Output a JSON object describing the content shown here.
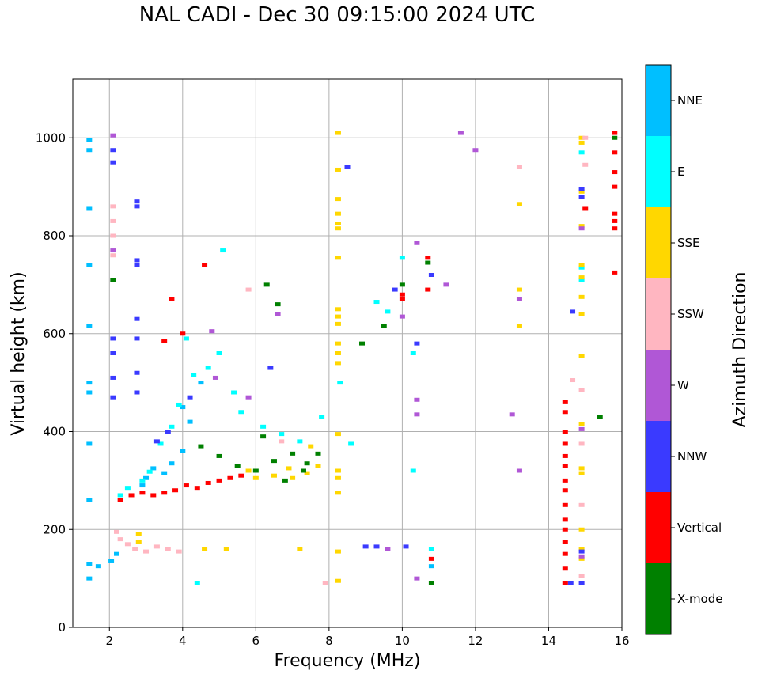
{
  "chart_data": {
    "type": "scatter",
    "title": "NAL CADI - Dec 30 09:15:00 2024 UTC",
    "xlabel": "Frequency (MHz)",
    "ylabel": "Virtual height (km)",
    "xlim": [
      1,
      16
    ],
    "ylim": [
      0,
      1120
    ],
    "xticks": [
      2,
      4,
      6,
      8,
      10,
      12,
      14,
      16
    ],
    "yticks": [
      0,
      200,
      400,
      600,
      800,
      1000
    ],
    "grid": true,
    "colorbar": {
      "label": "Azimuth Direction",
      "categories": [
        "X-mode",
        "Vertical",
        "NNW",
        "W",
        "SSW",
        "SSE",
        "E",
        "NNE"
      ],
      "colors": [
        "#008000",
        "#ff0000",
        "#3a3aff",
        "#b057d6",
        "#ffb6c1",
        "#ffd700",
        "#00ffff",
        "#00bfff"
      ]
    },
    "series": [
      {
        "name": "NNE",
        "points": [
          [
            1.45,
            975
          ],
          [
            1.45,
            995
          ],
          [
            1.45,
            855
          ],
          [
            1.45,
            740
          ],
          [
            1.45,
            615
          ],
          [
            1.45,
            480
          ],
          [
            1.45,
            500
          ],
          [
            1.45,
            375
          ],
          [
            1.45,
            260
          ],
          [
            1.45,
            130
          ],
          [
            1.45,
            100
          ],
          [
            1.7,
            125
          ],
          [
            2.05,
            135
          ],
          [
            2.2,
            150
          ],
          [
            3.0,
            305
          ],
          [
            3.5,
            315
          ],
          [
            3.7,
            335
          ],
          [
            4.0,
            360
          ],
          [
            4.0,
            450
          ],
          [
            4.2,
            420
          ],
          [
            4.5,
            500
          ],
          [
            2.9,
            290
          ],
          [
            3.2,
            325
          ],
          [
            10.8,
            125
          ]
        ]
      },
      {
        "name": "E",
        "points": [
          [
            2.3,
            270
          ],
          [
            2.5,
            285
          ],
          [
            2.9,
            300
          ],
          [
            3.1,
            318
          ],
          [
            3.4,
            375
          ],
          [
            3.7,
            410
          ],
          [
            3.9,
            455
          ],
          [
            4.1,
            590
          ],
          [
            4.3,
            515
          ],
          [
            4.7,
            530
          ],
          [
            5.0,
            560
          ],
          [
            5.4,
            480
          ],
          [
            5.6,
            440
          ],
          [
            6.2,
            410
          ],
          [
            6.7,
            395
          ],
          [
            7.2,
            380
          ],
          [
            7.8,
            430
          ],
          [
            8.3,
            500
          ],
          [
            8.6,
            375
          ],
          [
            9.3,
            665
          ],
          [
            9.6,
            645
          ],
          [
            10.0,
            755
          ],
          [
            10.3,
            320
          ],
          [
            10.3,
            560
          ],
          [
            14.9,
            970
          ],
          [
            14.9,
            735
          ],
          [
            14.9,
            710
          ],
          [
            4.4,
            90
          ],
          [
            5.1,
            770
          ],
          [
            10.8,
            160
          ]
        ]
      },
      {
        "name": "SSE",
        "points": [
          [
            8.25,
            1010
          ],
          [
            8.25,
            935
          ],
          [
            8.25,
            875
          ],
          [
            8.25,
            845
          ],
          [
            8.25,
            825
          ],
          [
            8.25,
            815
          ],
          [
            8.25,
            755
          ],
          [
            8.25,
            650
          ],
          [
            8.25,
            635
          ],
          [
            8.25,
            620
          ],
          [
            8.25,
            580
          ],
          [
            8.25,
            560
          ],
          [
            8.25,
            540
          ],
          [
            8.25,
            395
          ],
          [
            8.25,
            320
          ],
          [
            8.25,
            305
          ],
          [
            8.25,
            275
          ],
          [
            8.25,
            155
          ],
          [
            8.25,
            95
          ],
          [
            13.2,
            865
          ],
          [
            13.2,
            690
          ],
          [
            13.2,
            615
          ],
          [
            14.9,
            1000
          ],
          [
            14.9,
            990
          ],
          [
            14.9,
            890
          ],
          [
            14.9,
            820
          ],
          [
            14.9,
            740
          ],
          [
            14.9,
            715
          ],
          [
            14.9,
            675
          ],
          [
            14.9,
            640
          ],
          [
            14.9,
            555
          ],
          [
            14.9,
            415
          ],
          [
            14.9,
            325
          ],
          [
            14.9,
            315
          ],
          [
            14.9,
            200
          ],
          [
            14.9,
            160
          ],
          [
            14.9,
            140
          ],
          [
            5.8,
            320
          ],
          [
            6.5,
            310
          ],
          [
            7.0,
            305
          ],
          [
            7.4,
            315
          ],
          [
            7.7,
            330
          ],
          [
            6.0,
            305
          ],
          [
            6.9,
            325
          ],
          [
            4.6,
            160
          ],
          [
            5.2,
            160
          ],
          [
            7.2,
            160
          ],
          [
            2.8,
            175
          ],
          [
            2.8,
            190
          ],
          [
            7.5,
            370
          ]
        ]
      },
      {
        "name": "SSW",
        "points": [
          [
            2.1,
            860
          ],
          [
            2.1,
            830
          ],
          [
            2.1,
            800
          ],
          [
            2.1,
            760
          ],
          [
            2.2,
            195
          ],
          [
            2.3,
            180
          ],
          [
            2.5,
            170
          ],
          [
            2.7,
            160
          ],
          [
            3.0,
            155
          ],
          [
            3.3,
            165
          ],
          [
            3.6,
            160
          ],
          [
            3.9,
            155
          ],
          [
            5.8,
            690
          ],
          [
            6.7,
            380
          ],
          [
            14.65,
            505
          ],
          [
            14.9,
            485
          ],
          [
            14.9,
            375
          ],
          [
            14.9,
            250
          ],
          [
            14.9,
            105
          ],
          [
            14.9,
            90
          ],
          [
            15.0,
            1000
          ],
          [
            15.0,
            945
          ],
          [
            13.2,
            940
          ],
          [
            7.9,
            90
          ]
        ]
      },
      {
        "name": "W",
        "points": [
          [
            2.1,
            1005
          ],
          [
            2.1,
            770
          ],
          [
            2.1,
            710
          ],
          [
            6.6,
            640
          ],
          [
            4.8,
            605
          ],
          [
            11.6,
            1010
          ],
          [
            12.0,
            975
          ],
          [
            10.4,
            785
          ],
          [
            11.2,
            700
          ],
          [
            10.0,
            635
          ],
          [
            13.2,
            670
          ],
          [
            13.2,
            320
          ],
          [
            13.0,
            435
          ],
          [
            14.9,
            815
          ],
          [
            14.9,
            405
          ],
          [
            14.9,
            145
          ],
          [
            10.4,
            465
          ],
          [
            10.4,
            435
          ],
          [
            10.4,
            100
          ],
          [
            9.6,
            160
          ],
          [
            4.9,
            510
          ],
          [
            5.8,
            470
          ]
        ]
      },
      {
        "name": "NNW",
        "points": [
          [
            2.1,
            975
          ],
          [
            2.1,
            950
          ],
          [
            2.1,
            590
          ],
          [
            2.1,
            560
          ],
          [
            2.1,
            510
          ],
          [
            2.1,
            470
          ],
          [
            2.75,
            870
          ],
          [
            2.75,
            860
          ],
          [
            2.75,
            750
          ],
          [
            2.75,
            740
          ],
          [
            2.75,
            630
          ],
          [
            2.75,
            590
          ],
          [
            2.75,
            520
          ],
          [
            2.75,
            480
          ],
          [
            8.5,
            940
          ],
          [
            14.9,
            895
          ],
          [
            14.9,
            880
          ],
          [
            14.65,
            645
          ],
          [
            14.9,
            155
          ],
          [
            14.9,
            90
          ],
          [
            14.6,
            90
          ],
          [
            9.0,
            165
          ],
          [
            9.3,
            165
          ],
          [
            10.1,
            165
          ],
          [
            10.8,
            720
          ],
          [
            10.4,
            580
          ],
          [
            9.8,
            690
          ],
          [
            3.3,
            380
          ],
          [
            3.6,
            400
          ],
          [
            4.2,
            470
          ],
          [
            6.4,
            530
          ]
        ]
      },
      {
        "name": "Vertical",
        "points": [
          [
            15.8,
            1010
          ],
          [
            15.8,
            970
          ],
          [
            15.8,
            930
          ],
          [
            15.8,
            900
          ],
          [
            15.8,
            845
          ],
          [
            15.8,
            830
          ],
          [
            15.8,
            815
          ],
          [
            15.8,
            725
          ],
          [
            14.45,
            460
          ],
          [
            14.45,
            440
          ],
          [
            14.45,
            400
          ],
          [
            14.45,
            375
          ],
          [
            14.45,
            350
          ],
          [
            14.45,
            330
          ],
          [
            14.45,
            300
          ],
          [
            14.45,
            280
          ],
          [
            14.45,
            250
          ],
          [
            14.45,
            220
          ],
          [
            14.45,
            200
          ],
          [
            14.45,
            175
          ],
          [
            14.45,
            150
          ],
          [
            14.45,
            120
          ],
          [
            14.45,
            90
          ],
          [
            15.0,
            855
          ],
          [
            10.7,
            755
          ],
          [
            10.7,
            690
          ],
          [
            10.0,
            670
          ],
          [
            10.0,
            680
          ],
          [
            2.3,
            260
          ],
          [
            2.6,
            270
          ],
          [
            2.9,
            275
          ],
          [
            3.2,
            270
          ],
          [
            3.5,
            275
          ],
          [
            3.8,
            280
          ],
          [
            4.1,
            290
          ],
          [
            4.4,
            285
          ],
          [
            4.7,
            295
          ],
          [
            5.0,
            300
          ],
          [
            5.3,
            305
          ],
          [
            5.6,
            310
          ],
          [
            4.0,
            600
          ],
          [
            4.6,
            740
          ],
          [
            3.7,
            670
          ],
          [
            3.5,
            585
          ],
          [
            10.8,
            140
          ]
        ]
      },
      {
        "name": "X-mode",
        "points": [
          [
            15.4,
            430
          ],
          [
            15.8,
            1000
          ],
          [
            2.1,
            710
          ],
          [
            10.8,
            90
          ],
          [
            8.9,
            580
          ],
          [
            9.5,
            615
          ],
          [
            10.0,
            700
          ],
          [
            10.7,
            745
          ],
          [
            6.0,
            320
          ],
          [
            6.5,
            340
          ],
          [
            7.0,
            355
          ],
          [
            7.4,
            335
          ],
          [
            7.7,
            355
          ],
          [
            5.5,
            330
          ],
          [
            5.0,
            350
          ],
          [
            4.5,
            370
          ],
          [
            6.2,
            390
          ],
          [
            6.8,
            300
          ],
          [
            7.3,
            320
          ],
          [
            6.3,
            700
          ],
          [
            6.6,
            660
          ]
        ]
      }
    ]
  }
}
